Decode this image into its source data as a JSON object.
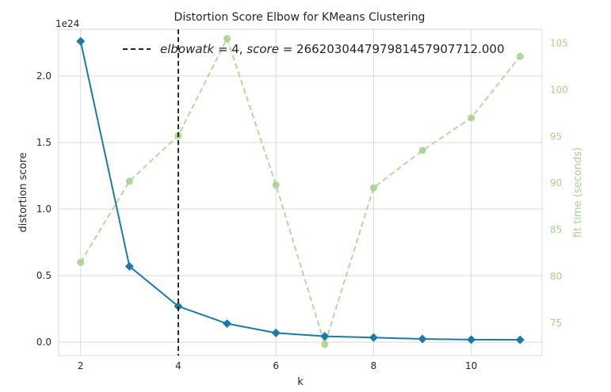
{
  "chart_data": {
    "type": "line",
    "title": "Distortion Score Elbow for KMeans Clustering",
    "xlabel": "k",
    "ylabel": "distortion score",
    "y2label": "fit time (seconds)",
    "y_scale_label": "1e24",
    "x": [
      2,
      3,
      4,
      5,
      6,
      7,
      8,
      9,
      10,
      11
    ],
    "xlim": [
      1.55,
      11.45
    ],
    "ylim": [
      -0.1,
      2.35
    ],
    "y2lim": [
      71.5,
      106.5
    ],
    "x_ticks": [
      "2",
      "4",
      "6",
      "8",
      "10"
    ],
    "y_ticks": [
      "0.0",
      "0.5",
      "1.0",
      "1.5",
      "2.0"
    ],
    "y2_ticks": [
      "75",
      "80",
      "85",
      "90",
      "95",
      "100",
      "105"
    ],
    "grid": true,
    "series": [
      {
        "axis": "left",
        "color": "#1a7ba8",
        "marker": "diamond",
        "values": [
          2.26,
          0.57,
          0.27,
          0.14,
          0.07,
          0.045,
          0.035,
          0.025,
          0.02,
          0.018
        ]
      },
      {
        "axis": "right",
        "color": "#a9d18e",
        "marker": "circle",
        "dashed": true,
        "values": [
          81.5,
          90.2,
          95.1,
          105.5,
          89.8,
          72.7,
          89.5,
          93.5,
          97.0,
          103.6
        ]
      }
    ],
    "elbow": {
      "x": 4,
      "legend_label_k": "elbow at k = 4, score = ",
      "legend_text": "elbowatk = 4, score = 266203044797981457907712.000",
      "legend_italic_a": "elbowatk",
      "legend_mid_a": " = 4, ",
      "legend_italic_b": "score",
      "legend_mid_b": " = 266203044797981457907712.000",
      "color": "#262626"
    }
  }
}
